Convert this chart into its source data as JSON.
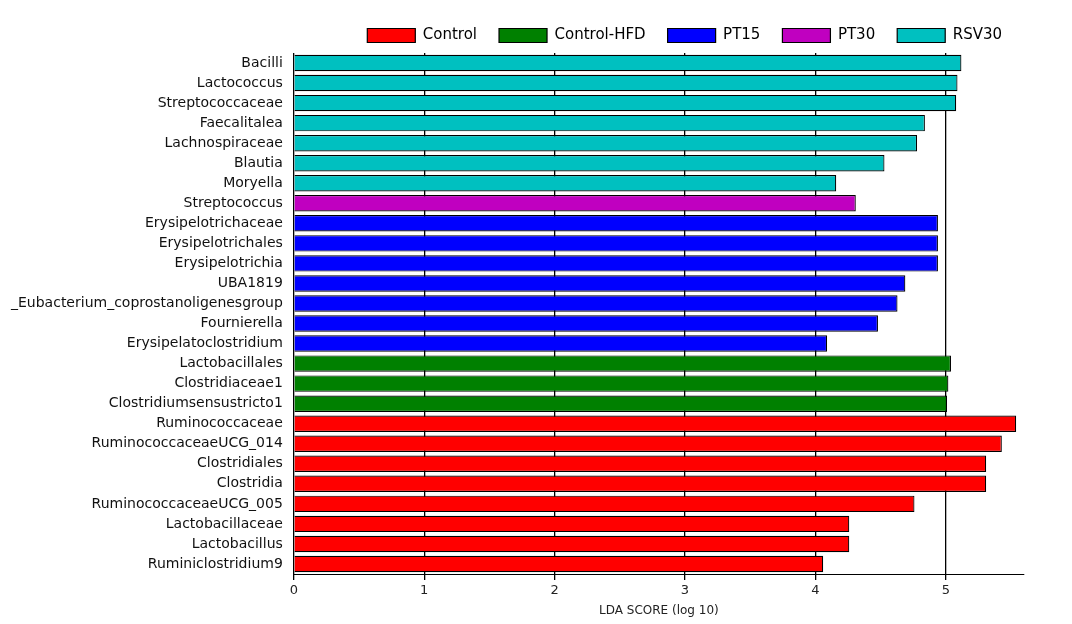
{
  "chart_data": {
    "type": "bar",
    "orientation": "horizontal",
    "xlabel": "LDA SCORE (log 10)",
    "categories": [
      "Bacilli",
      "Lactococcus",
      "Streptococcaceae",
      "Faecalitalea",
      "Lachnospiraceae",
      "Blautia",
      "Moryella",
      "Streptococcus",
      "Erysipelotrichaceae",
      "Erysipelotrichales",
      "Erysipelotrichia",
      "UBA1819",
      "_Eubacterium_coprostanoligenesgroup",
      "Fournierella",
      "Erysipelatoclostridium",
      "Lactobacillales",
      "Clostridiaceae1",
      "Clostridiumsensustricto1",
      "Ruminococcaceae",
      "RuminococcaceaeUCG_014",
      "Clostridiales",
      "Clostridia",
      "RuminococcaceaeUCG_005",
      "Lactobacillaceae",
      "Lactobacillus",
      "Ruminiclostridium9"
    ],
    "series": [
      {
        "name": "Control",
        "color": "#ff0000",
        "values": [
          null,
          null,
          null,
          null,
          null,
          null,
          null,
          null,
          null,
          null,
          null,
          null,
          null,
          null,
          null,
          null,
          null,
          null,
          5.54,
          5.43,
          5.31,
          5.31,
          4.76,
          4.26,
          4.26,
          4.06
        ]
      },
      {
        "name": "Control-HFD",
        "color": "#008000",
        "values": [
          null,
          null,
          null,
          null,
          null,
          null,
          null,
          null,
          null,
          null,
          null,
          null,
          null,
          null,
          null,
          5.04,
          5.02,
          5.01,
          null,
          null,
          null,
          null,
          null,
          null,
          null,
          null
        ]
      },
      {
        "name": "PT15",
        "color": "#0000ff",
        "values": [
          null,
          null,
          null,
          null,
          null,
          null,
          null,
          null,
          4.94,
          4.94,
          4.94,
          4.69,
          4.63,
          4.48,
          4.09,
          null,
          null,
          null,
          null,
          null,
          null,
          null,
          null,
          null,
          null,
          null
        ]
      },
      {
        "name": "PT30",
        "color": "#c000c0",
        "values": [
          null,
          null,
          null,
          null,
          null,
          null,
          null,
          4.31,
          null,
          null,
          null,
          null,
          null,
          null,
          null,
          null,
          null,
          null,
          null,
          null,
          null,
          null,
          null,
          null,
          null,
          null
        ]
      },
      {
        "name": "RSV30",
        "color": "#00c0c0",
        "values": [
          5.12,
          5.09,
          5.08,
          4.84,
          4.78,
          4.53,
          4.16,
          null,
          null,
          null,
          null,
          null,
          null,
          null,
          null,
          null,
          null,
          null,
          null,
          null,
          null,
          null,
          null,
          null,
          null,
          null
        ]
      }
    ],
    "xlim": [
      0,
      5.6
    ],
    "xticks": [
      0,
      1,
      2,
      3,
      4,
      5
    ],
    "grid": "x",
    "legend": "top"
  }
}
